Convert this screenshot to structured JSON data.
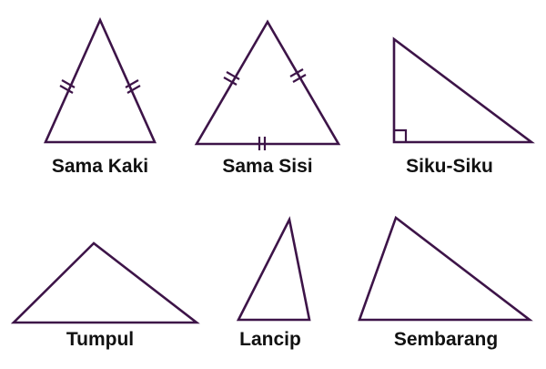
{
  "colors": {
    "stroke": "#3d1448",
    "text": "#111111",
    "background": "#ffffff"
  },
  "triangles": [
    {
      "id": "sama-kaki",
      "label": "Sama Kaki"
    },
    {
      "id": "sama-sisi",
      "label": "Sama Sisi"
    },
    {
      "id": "siku-siku",
      "label": "Siku-Siku"
    },
    {
      "id": "tumpul",
      "label": "Tumpul"
    },
    {
      "id": "lancip",
      "label": "Lancip"
    },
    {
      "id": "sembarang",
      "label": "Sembarang"
    }
  ]
}
